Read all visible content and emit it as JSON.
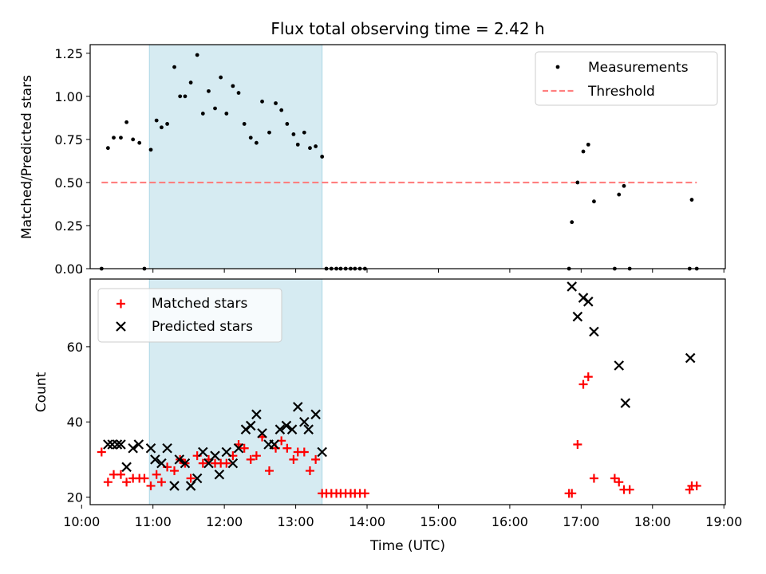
{
  "figure": {
    "title": "Flux total observing time = 2.42 h"
  },
  "colors": {
    "shade": "#add8e6",
    "threshold": "#ff7f7f",
    "matched": "#ff0000",
    "predicted": "#000000",
    "measurement": "#000000"
  },
  "chart_data": [
    {
      "type": "scatter",
      "ylabel": "Matched/Predicted stars",
      "xlim": [
        10.12,
        19.02
      ],
      "ylim": [
        0,
        1.3
      ],
      "yticks": [
        0.0,
        0.25,
        0.5,
        0.75,
        1.0,
        1.25
      ],
      "ytick_labels": [
        "0.00",
        "0.25",
        "0.50",
        "0.75",
        "1.00",
        "1.25"
      ],
      "shaded_span": [
        10.95,
        13.37
      ],
      "legend": {
        "placement": "upper right",
        "entries": [
          "Measurements",
          "Threshold"
        ]
      },
      "threshold": {
        "name": "Threshold",
        "y": 0.5,
        "x_range": [
          10.28,
          18.62
        ]
      },
      "series": [
        {
          "name": "Measurements",
          "x": [
            10.28,
            10.37,
            10.45,
            10.55,
            10.63,
            10.72,
            10.81,
            10.88,
            10.97,
            11.05,
            11.12,
            11.2,
            11.3,
            11.38,
            11.45,
            11.53,
            11.62,
            11.7,
            11.78,
            11.87,
            11.95,
            12.03,
            12.12,
            12.2,
            12.28,
            12.37,
            12.45,
            12.53,
            12.63,
            12.72,
            12.8,
            12.88,
            12.97,
            13.03,
            13.12,
            13.2,
            13.28,
            13.37,
            13.43,
            13.5,
            13.57,
            13.63,
            13.7,
            13.77,
            13.83,
            13.9,
            13.97,
            16.83,
            16.87,
            16.95,
            17.03,
            17.1,
            17.18,
            17.47,
            17.53,
            17.6,
            17.68,
            18.52,
            18.55,
            18.62
          ],
          "y": [
            0.0,
            0.7,
            0.76,
            0.76,
            0.85,
            0.75,
            0.73,
            0.0,
            0.69,
            0.86,
            0.82,
            0.84,
            1.17,
            1.0,
            1.0,
            1.08,
            1.24,
            0.9,
            1.03,
            0.93,
            1.11,
            0.9,
            1.06,
            1.02,
            0.84,
            0.76,
            0.73,
            0.97,
            0.79,
            0.96,
            0.92,
            0.84,
            0.78,
            0.72,
            0.79,
            0.7,
            0.71,
            0.65,
            0.0,
            0.0,
            0.0,
            0.0,
            0.0,
            0.0,
            0.0,
            0.0,
            0.0,
            0.0,
            0.27,
            0.5,
            0.68,
            0.72,
            0.39,
            0.0,
            0.43,
            0.48,
            0.0,
            0.0,
            0.4,
            0.0
          ]
        }
      ]
    },
    {
      "type": "scatter",
      "xlabel": "Time (UTC)",
      "ylabel": "Count",
      "xlim": [
        10.12,
        19.02
      ],
      "ylim": [
        18,
        78
      ],
      "yticks": [
        20,
        40,
        60
      ],
      "xticks": [
        10,
        11,
        12,
        13,
        14,
        15,
        16,
        17,
        18,
        19
      ],
      "xtick_labels": [
        "10:00",
        "11:00",
        "12:00",
        "13:00",
        "14:00",
        "15:00",
        "16:00",
        "17:00",
        "18:00",
        "19:00"
      ],
      "shaded_span": [
        10.95,
        13.37
      ],
      "legend": {
        "placement": "upper left",
        "entries": [
          "Matched stars",
          "Predicted stars"
        ]
      },
      "series": [
        {
          "name": "Matched stars",
          "marker": "plus",
          "x": [
            10.28,
            10.37,
            10.45,
            10.55,
            10.63,
            10.72,
            10.81,
            10.88,
            10.97,
            11.05,
            11.12,
            11.2,
            11.3,
            11.38,
            11.45,
            11.53,
            11.62,
            11.7,
            11.78,
            11.87,
            11.95,
            12.03,
            12.12,
            12.2,
            12.28,
            12.37,
            12.45,
            12.53,
            12.63,
            12.72,
            12.8,
            12.88,
            12.97,
            13.03,
            13.12,
            13.2,
            13.28,
            13.37,
            13.43,
            13.5,
            13.57,
            13.63,
            13.7,
            13.77,
            13.83,
            13.9,
            13.97,
            16.83,
            16.87,
            16.95,
            17.03,
            17.1,
            17.18,
            17.47,
            17.53,
            17.6,
            17.68,
            18.52,
            18.55,
            18.62
          ],
          "y": [
            32,
            24,
            26,
            26,
            24,
            25,
            25,
            25,
            23,
            26,
            24,
            28,
            27,
            30,
            29,
            25,
            31,
            29,
            30,
            29,
            29,
            29,
            31,
            34,
            33,
            30,
            31,
            36,
            27,
            33,
            35,
            33,
            30,
            32,
            32,
            27,
            30,
            21,
            21,
            21,
            21,
            21,
            21,
            21,
            21,
            21,
            21,
            21,
            21,
            34,
            50,
            52,
            25,
            25,
            24,
            22,
            22,
            22,
            23,
            23
          ]
        },
        {
          "name": "Predicted stars",
          "marker": "x",
          "x": [
            10.37,
            10.43,
            10.5,
            10.55,
            10.63,
            10.72,
            10.8,
            10.97,
            11.03,
            11.12,
            11.2,
            11.3,
            11.37,
            11.45,
            11.53,
            11.62,
            11.7,
            11.78,
            11.87,
            11.93,
            12.03,
            12.12,
            12.2,
            12.3,
            12.37,
            12.45,
            12.53,
            12.62,
            12.7,
            12.78,
            12.87,
            12.95,
            13.03,
            13.12,
            13.18,
            13.28,
            13.37,
            16.87,
            16.95,
            17.03,
            17.1,
            17.18,
            17.53,
            17.62,
            18.53
          ],
          "y": [
            34,
            34,
            34,
            34,
            28,
            33,
            34,
            33,
            30,
            29,
            33,
            23,
            30,
            29,
            23,
            25,
            32,
            29,
            31,
            26,
            32,
            29,
            33,
            38,
            39,
            42,
            37,
            34,
            34,
            38,
            39,
            38,
            44,
            40,
            38,
            42,
            32,
            76,
            68,
            73,
            72,
            64,
            55,
            45,
            57
          ]
        }
      ]
    }
  ]
}
